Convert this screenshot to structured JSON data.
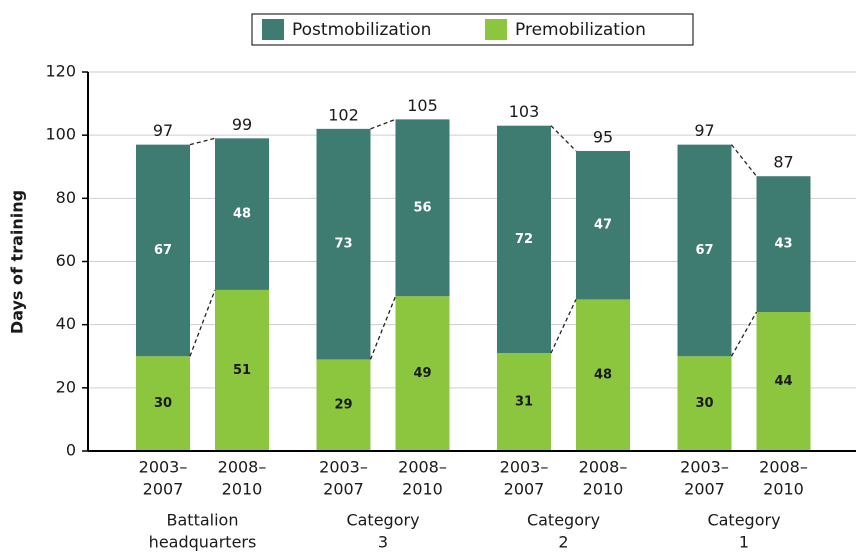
{
  "chart_data": {
    "type": "bar",
    "stacked": true,
    "y_label": "Days of training",
    "categories": [
      [
        "2003–",
        "2007"
      ],
      [
        "2008–",
        "2010"
      ],
      [
        "2003–",
        "2007"
      ],
      [
        "2008–",
        "2010"
      ],
      [
        "2003–",
        "2007"
      ],
      [
        "2008–",
        "2010"
      ],
      [
        "2003–",
        "2007"
      ],
      [
        "2008–",
        "2010"
      ]
    ],
    "groups": [
      [
        "Battalion",
        "headquarters"
      ],
      [
        "Category",
        "3"
      ],
      [
        "Category",
        "2"
      ],
      [
        "Category",
        "1"
      ]
    ],
    "series": [
      {
        "name": "Postmobilization",
        "color": "#3e7b70",
        "values": [
          67,
          48,
          73,
          56,
          72,
          47,
          67,
          43
        ]
      },
      {
        "name": "Premobilization",
        "color": "#8cc63f",
        "values": [
          30,
          51,
          29,
          49,
          31,
          48,
          30,
          44
        ]
      }
    ],
    "totals": [
      97,
      99,
      102,
      105,
      103,
      95,
      97,
      87
    ],
    "ylim": [
      0,
      120
    ],
    "yticks": [
      0,
      20,
      40,
      60,
      80,
      100,
      120
    ],
    "grid": true,
    "legend": "top"
  }
}
